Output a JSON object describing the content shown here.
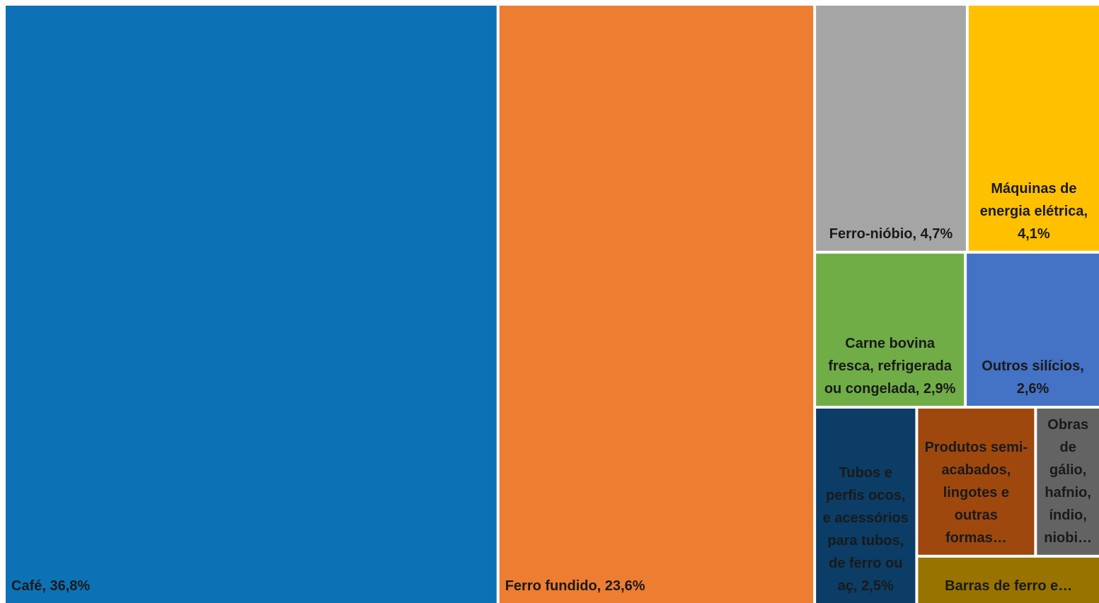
{
  "chart_data": {
    "type": "treemap",
    "labels": [
      "Café, 36,8%",
      "Ferro fundido, 23,6%",
      "Ferro-nióbio, 4,7%",
      "Máquinas de energia elétrica, 4,1%",
      "Carne bovina fresca, refrigerada ou congelada, 2,9%",
      "Outros silícios, 2,6%",
      "Tubos e perfis ocos, e acessórios para tubos, de ferro ou aç, 2,5%",
      "Produtos semi-acabados, lingotes e outras formas…",
      "Obras de gálio, hafnio, índio, niobi…",
      "Barras de ferro e…"
    ],
    "values": [
      36.8,
      23.6,
      4.7,
      4.1,
      2.9,
      2.6,
      2.5,
      2.2,
      1.2,
      1.1
    ],
    "colors": [
      "#0d72b5",
      "#ed7d31",
      "#a5a5a5",
      "#ffc000",
      "#70ad47",
      "#4472c4",
      "#0b3d66",
      "#9e480e",
      "#636363",
      "#997300"
    ]
  }
}
